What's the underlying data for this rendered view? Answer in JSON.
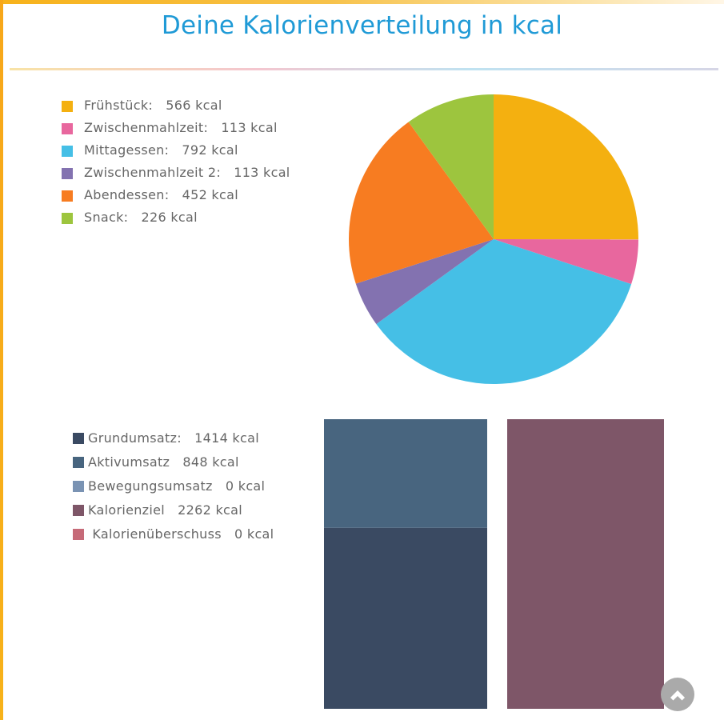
{
  "title": "Deine Kalorienverteilung in kcal",
  "chart_data": [
    {
      "type": "pie",
      "unit": "kcal",
      "slices": [
        {
          "label": "Frühstück:",
          "value": 566,
          "display": "566 kcal",
          "color": "#f4b010"
        },
        {
          "label": "Zwischenmahlzeit:",
          "value": 113,
          "display": "113 kcal",
          "color": "#e8679e"
        },
        {
          "label": "Mittagessen:",
          "value": 792,
          "display": "792 kcal",
          "color": "#45bfe6"
        },
        {
          "label": "Zwischenmahlzeit 2:",
          "value": 113,
          "display": "113 kcal",
          "color": "#8372b0"
        },
        {
          "label": "Abendessen:",
          "value": 452,
          "display": "452 kcal",
          "color": "#f77c21"
        },
        {
          "label": "Snack:",
          "value": 226,
          "display": "226 kcal",
          "color": "#9dc53e"
        }
      ]
    },
    {
      "type": "bar",
      "stacked": true,
      "unit": "kcal",
      "legend": [
        {
          "label": "Grundumsatz:",
          "value": 1414,
          "display": "1414 kcal",
          "color": "#3a4a62"
        },
        {
          "label": "Aktivumsatz",
          "value": 848,
          "display": "848 kcal",
          "color": "#48657f"
        },
        {
          "label": "Bewegungsumsatz",
          "value": 0,
          "display": "0 kcal",
          "color": "#7a93b3"
        },
        {
          "label": "Kalorienziel",
          "value": 2262,
          "display": "2262 kcal",
          "color": "#7e5668"
        },
        {
          "label": "Kalorienüberschuss",
          "value": 0,
          "display": "0 kcal",
          "color": "#c66a78"
        }
      ],
      "stacks": [
        [
          "Grundumsatz:",
          "Aktivumsatz",
          "Bewegungsumsatz"
        ],
        [
          "Kalorienziel",
          "Kalorienüberschuss"
        ]
      ]
    }
  ]
}
